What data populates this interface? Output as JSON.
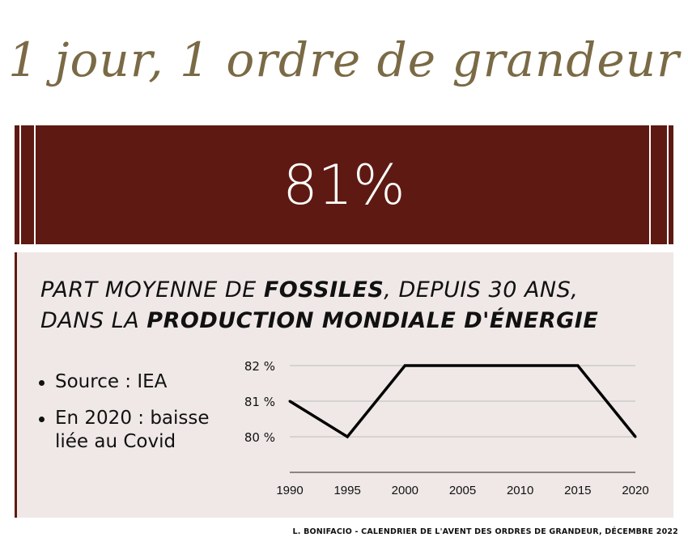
{
  "header": {
    "title": "1 jour, 1 ordre de grandeur"
  },
  "banner": {
    "value": "81%"
  },
  "panel": {
    "heading_line1_a": "PART MOYENNE DE ",
    "heading_line1_b": "FOSSILES",
    "heading_line1_c": ", DEPUIS 30 ANS,",
    "heading_line2_a": "DANS LA ",
    "heading_line2_b": "PRODUCTION MONDIALE D'ÉNERGIE",
    "bullets": [
      "Source : IEA",
      "En 2020 : baisse liée au Covid"
    ]
  },
  "chart_data": {
    "type": "line",
    "x": [
      1990,
      1995,
      2000,
      2005,
      2010,
      2015,
      2020
    ],
    "categories": [
      "1990",
      "1995",
      "2000",
      "2005",
      "2010",
      "2015",
      "2020"
    ],
    "series": [
      {
        "values": [
          81,
          80,
          82,
          82,
          82,
          82,
          80
        ]
      }
    ],
    "yticks": [
      80,
      81,
      82
    ],
    "ytick_labels": [
      "80 %",
      "81 %",
      "82 %"
    ],
    "ylim": [
      79,
      82
    ],
    "grid": true,
    "colors": {
      "line": "#000000",
      "grid": "#bbbbbb"
    }
  },
  "footer": {
    "credit": "L. BONIFACIO - CALENDRIER DE L'AVENT DES ORDRES DE GRANDEUR, DÉCEMBRE 2022"
  },
  "colors": {
    "accent": "#5e1a12",
    "title": "#7a6a45",
    "panel": "#efe8e7"
  }
}
